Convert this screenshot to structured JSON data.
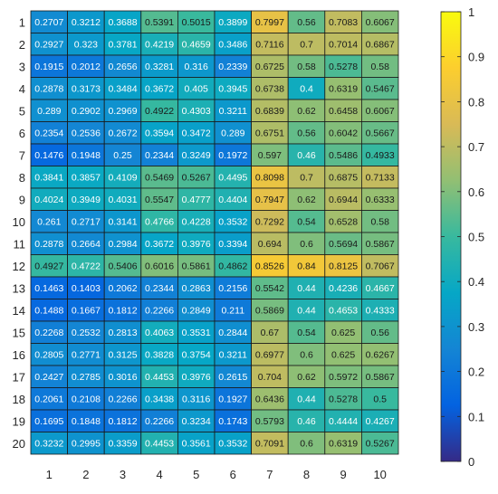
{
  "chart_data": {
    "type": "heatmap",
    "title": "",
    "xlabel": "",
    "ylabel": "",
    "x_categories": [
      "1",
      "2",
      "3",
      "4",
      "5",
      "6",
      "7",
      "8",
      "9",
      "10"
    ],
    "y_categories": [
      "1",
      "2",
      "3",
      "4",
      "5",
      "6",
      "7",
      "8",
      "9",
      "10",
      "11",
      "12",
      "13",
      "14",
      "15",
      "16",
      "17",
      "18",
      "19",
      "20"
    ],
    "values": [
      [
        "0.2707",
        "0.3212",
        "0.3688",
        "0.5391",
        "0.5015",
        "0.3899",
        "0.7997",
        "0.56",
        "0.7083",
        "0.6067"
      ],
      [
        "0.2927",
        "0.323",
        "0.3781",
        "0.4219",
        "0.4659",
        "0.3486",
        "0.7116",
        "0.7",
        "0.7014",
        "0.6867"
      ],
      [
        "0.1915",
        "0.2012",
        "0.2656",
        "0.3281",
        "0.316",
        "0.2339",
        "0.6725",
        "0.58",
        "0.5278",
        "0.58"
      ],
      [
        "0.2878",
        "0.3173",
        "0.3484",
        "0.3672",
        "0.405",
        "0.3945",
        "0.6738",
        "0.4",
        "0.6319",
        "0.5467"
      ],
      [
        "0.289",
        "0.2902",
        "0.2969",
        "0.4922",
        "0.4303",
        "0.3211",
        "0.6839",
        "0.62",
        "0.6458",
        "0.6067"
      ],
      [
        "0.2354",
        "0.2536",
        "0.2672",
        "0.3594",
        "0.3472",
        "0.289",
        "0.6751",
        "0.56",
        "0.6042",
        "0.5667"
      ],
      [
        "0.1476",
        "0.1948",
        "0.25",
        "0.2344",
        "0.3249",
        "0.1972",
        "0.597",
        "0.46",
        "0.5486",
        "0.4933"
      ],
      [
        "0.3841",
        "0.3857",
        "0.4109",
        "0.5469",
        "0.5267",
        "0.4495",
        "0.8098",
        "0.7",
        "0.6875",
        "0.7133"
      ],
      [
        "0.4024",
        "0.3949",
        "0.4031",
        "0.5547",
        "0.4777",
        "0.4404",
        "0.7947",
        "0.62",
        "0.6944",
        "0.6333"
      ],
      [
        "0.261",
        "0.2717",
        "0.3141",
        "0.4766",
        "0.4228",
        "0.3532",
        "0.7292",
        "0.54",
        "0.6528",
        "0.58"
      ],
      [
        "0.2878",
        "0.2664",
        "0.2984",
        "0.3672",
        "0.3976",
        "0.3394",
        "0.694",
        "0.6",
        "0.5694",
        "0.5867"
      ],
      [
        "0.4927",
        "0.4722",
        "0.5406",
        "0.6016",
        "0.5861",
        "0.4862",
        "0.8526",
        "0.84",
        "0.8125",
        "0.7067"
      ],
      [
        "0.1463",
        "0.1403",
        "0.2062",
        "0.2344",
        "0.2863",
        "0.2156",
        "0.5542",
        "0.44",
        "0.4236",
        "0.4667"
      ],
      [
        "0.1488",
        "0.1667",
        "0.1812",
        "0.2266",
        "0.2849",
        "0.211",
        "0.5869",
        "0.44",
        "0.4653",
        "0.4333"
      ],
      [
        "0.2268",
        "0.2532",
        "0.2813",
        "0.4063",
        "0.3531",
        "0.2844",
        "0.67",
        "0.54",
        "0.625",
        "0.56"
      ],
      [
        "0.2805",
        "0.2771",
        "0.3125",
        "0.3828",
        "0.3754",
        "0.3211",
        "0.6977",
        "0.6",
        "0.625",
        "0.6267"
      ],
      [
        "0.2427",
        "0.2785",
        "0.3016",
        "0.4453",
        "0.3976",
        "0.2615",
        "0.704",
        "0.62",
        "0.5972",
        "0.5867"
      ],
      [
        "0.2061",
        "0.2108",
        "0.2266",
        "0.3438",
        "0.3116",
        "0.1927",
        "0.6436",
        "0.44",
        "0.5278",
        "0.5"
      ],
      [
        "0.1695",
        "0.1848",
        "0.1812",
        "0.2266",
        "0.3234",
        "0.1743",
        "0.5793",
        "0.46",
        "0.4444",
        "0.4267"
      ],
      [
        "0.3232",
        "0.2995",
        "0.3359",
        "0.4453",
        "0.3561",
        "0.3532",
        "0.7091",
        "0.6",
        "0.6319",
        "0.5267"
      ]
    ],
    "colorbar": {
      "range": [
        0,
        1
      ],
      "ticks": [
        "0",
        "0.1",
        "0.2",
        "0.3",
        "0.4",
        "0.5",
        "0.6",
        "0.7",
        "0.8",
        "0.9",
        "1"
      ],
      "colormap": "parula"
    },
    "colormap_stops": [
      "#352a87",
      "#0363e1",
      "#1485d4",
      "#06a7c6",
      "#38b99e",
      "#92bf73",
      "#d9ba56",
      "#fcce2e",
      "#f9fb0e"
    ]
  }
}
